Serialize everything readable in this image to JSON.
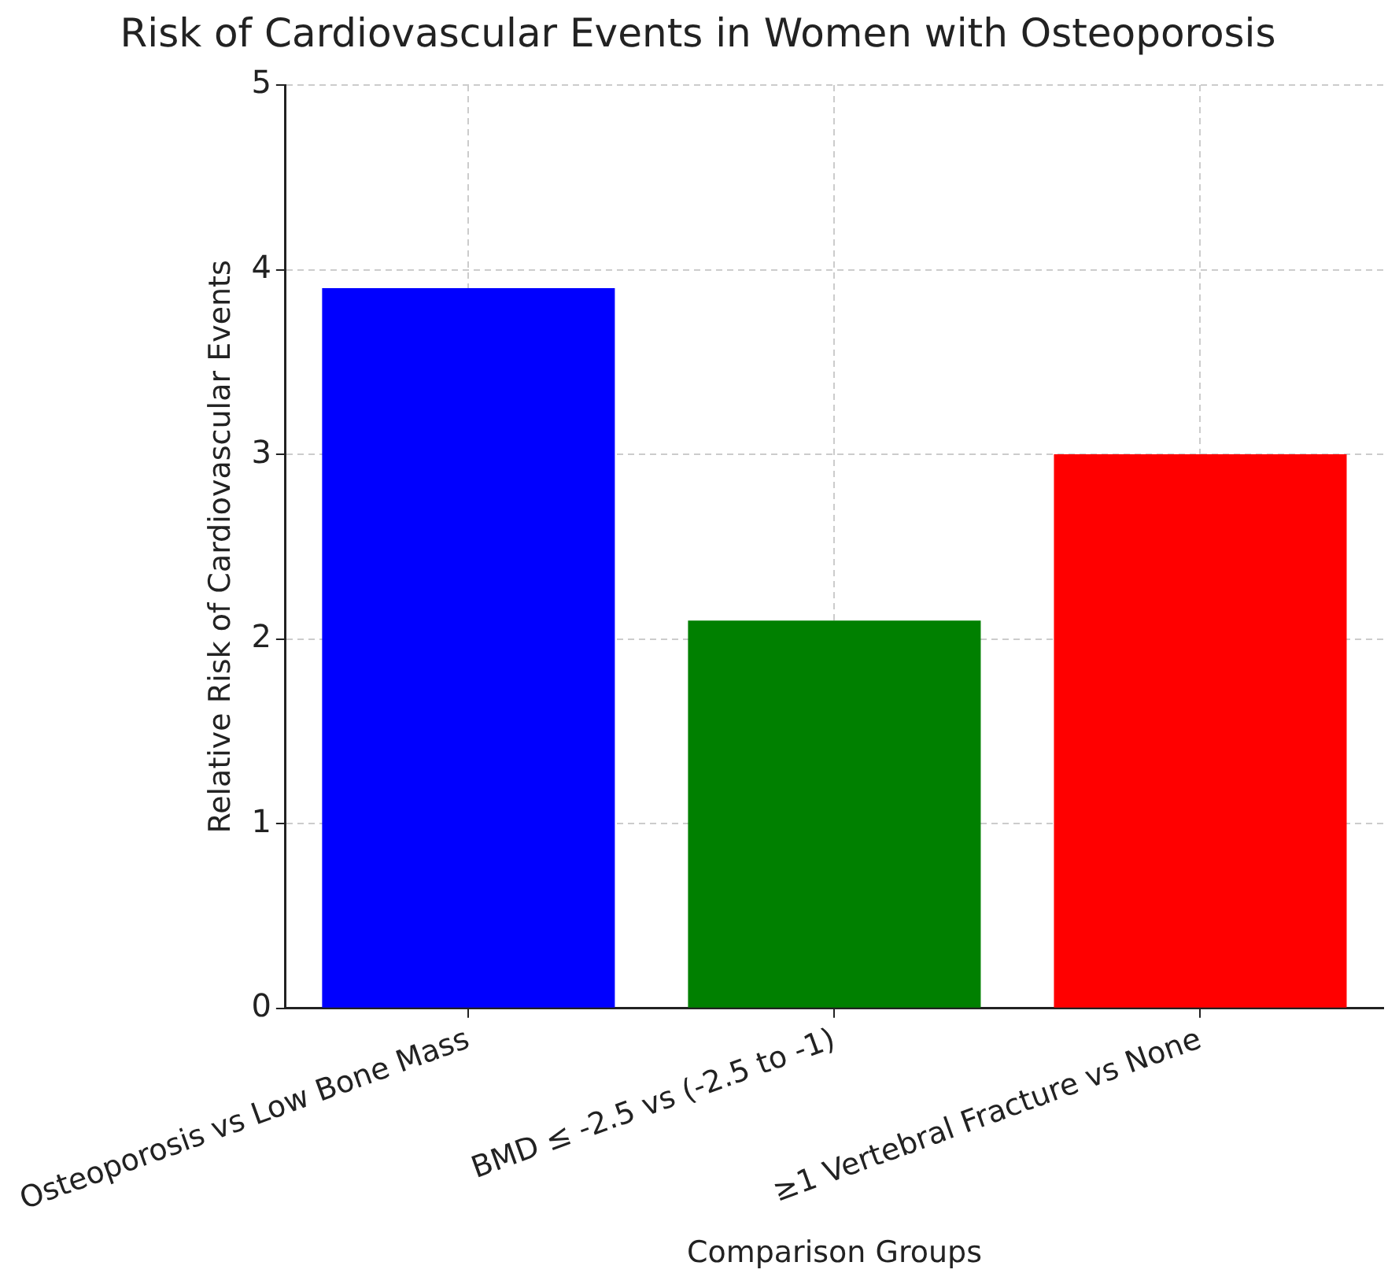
{
  "chart_data": {
    "type": "bar",
    "title": "Risk of Cardiovascular Events in Women with Osteoporosis",
    "xlabel": "Comparison Groups",
    "ylabel": "Relative Risk of Cardiovascular Events",
    "categories": [
      "Osteoporosis vs Low Bone Mass",
      "BMD ≤ -2.5 vs (-2.5 to -1)",
      "≥1 Vertebral Fracture vs None"
    ],
    "values": [
      3.9,
      2.1,
      3.0
    ],
    "colors": [
      "#0000ff",
      "#008000",
      "#ff0000"
    ],
    "ylim": [
      0,
      5
    ],
    "yticks": [
      0,
      1,
      2,
      3,
      4,
      5
    ],
    "grid": true
  }
}
